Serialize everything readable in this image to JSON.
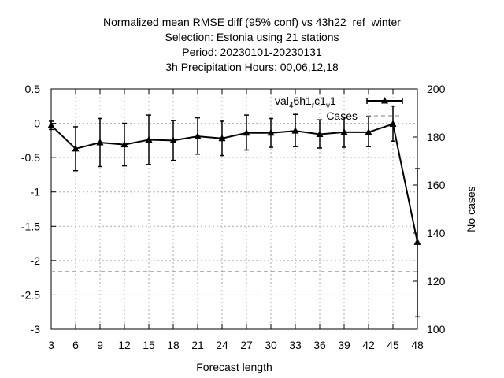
{
  "chart_data": {
    "type": "line",
    "title_lines": [
      "Normalized mean RMSE diff (95% conf) vs 43h22_ref_winter",
      "Selection: Estonia using    21 stations",
      "Period: 20230101-20230131",
      "3h Precipitation   Hours:  00,06,12,18"
    ],
    "xlabel": "Forecast length",
    "ylabel": "",
    "y2label": "No cases",
    "x": [
      3,
      6,
      9,
      12,
      15,
      18,
      21,
      24,
      27,
      30,
      33,
      36,
      39,
      42,
      45,
      48
    ],
    "xlim": [
      3,
      48
    ],
    "ylim": [
      -3,
      0.5
    ],
    "y2lim": [
      100,
      200
    ],
    "xticks": [
      "3",
      "6",
      "9",
      "12",
      "15",
      "18",
      "21",
      "24",
      "27",
      "30",
      "33",
      "36",
      "39",
      "42",
      "45",
      "48"
    ],
    "yticks": [
      "0.5",
      "0",
      "-0.5",
      "-1",
      "-1.5",
      "-2",
      "-2.5",
      "-3"
    ],
    "y2ticks": [
      "200",
      "180",
      "160",
      "140",
      "120",
      "100"
    ],
    "grid": true,
    "legend_position": "top-right",
    "series": [
      {
        "name": "val_46h1_rc1_v1",
        "color": "#000000",
        "marker": "triangle",
        "values": [
          -0.03,
          -0.37,
          -0.28,
          -0.31,
          -0.24,
          -0.25,
          -0.19,
          -0.22,
          -0.14,
          -0.14,
          -0.11,
          -0.16,
          -0.13,
          -0.13,
          -0.01,
          -1.73
        ],
        "err_low": [
          -0.09,
          -0.69,
          -0.63,
          -0.62,
          -0.6,
          -0.54,
          -0.45,
          -0.47,
          -0.39,
          -0.35,
          -0.34,
          -0.36,
          -0.35,
          -0.34,
          -0.26,
          -2.82
        ],
        "err_high": [
          0.03,
          -0.05,
          0.07,
          0.0,
          0.12,
          0.04,
          0.08,
          0.03,
          0.12,
          0.07,
          0.13,
          0.05,
          0.09,
          0.1,
          0.25,
          -0.66
        ]
      },
      {
        "name": "Cases",
        "color": "#999999",
        "style": "dashed",
        "axis": "y2",
        "values": [
          124,
          124,
          124,
          124,
          124,
          124,
          124,
          124,
          124,
          124,
          124,
          124,
          124,
          124,
          124,
          124
        ]
      }
    ],
    "legend": {
      "label_base": "val",
      "label_parts": [
        {
          "text": "val",
          "shift": "base"
        },
        {
          "text": "4",
          "shift": "sub"
        },
        {
          "text": "6h1",
          "shift": "base"
        },
        {
          "text": "r",
          "shift": "sub"
        },
        {
          "text": "c1",
          "shift": "base"
        },
        {
          "text": "v",
          "shift": "sub"
        },
        {
          "text": "1",
          "shift": "base"
        }
      ],
      "cases_label": "Cases"
    }
  }
}
